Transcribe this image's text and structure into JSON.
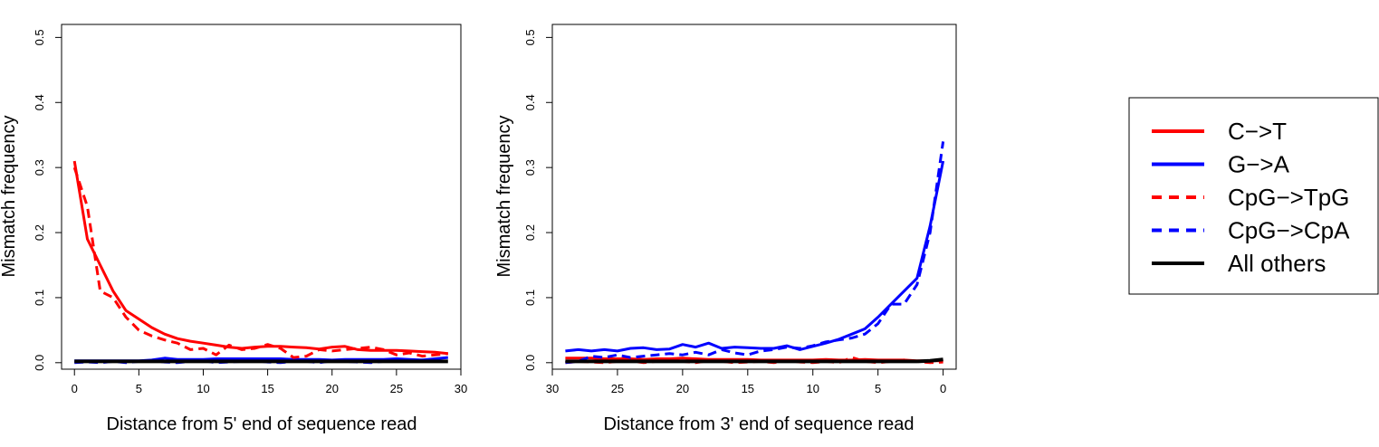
{
  "chart_data": [
    {
      "type": "line",
      "xlabel": "Distance from 5' end of sequence read",
      "ylabel": "Mismatch frequency",
      "xlim": [
        -1,
        30
      ],
      "ylim": [
        -0.01,
        0.52
      ],
      "xticks": [
        0,
        5,
        10,
        15,
        20,
        25,
        30
      ],
      "yticks": [
        0.0,
        0.1,
        0.2,
        0.3,
        0.4,
        0.5
      ],
      "x_reversed": false,
      "series": [
        {
          "name": "C->T",
          "color": "#ff0000",
          "dash": false,
          "x": [
            0,
            1,
            2,
            3,
            4,
            5,
            6,
            7,
            8,
            9,
            10,
            11,
            12,
            13,
            14,
            15,
            16,
            17,
            18,
            19,
            20,
            21,
            22,
            23,
            24,
            25,
            26,
            27,
            28,
            29
          ],
          "y": [
            0.31,
            0.19,
            0.15,
            0.11,
            0.08,
            0.067,
            0.054,
            0.044,
            0.037,
            0.033,
            0.03,
            0.027,
            0.024,
            0.022,
            0.024,
            0.025,
            0.025,
            0.024,
            0.023,
            0.021,
            0.024,
            0.025,
            0.02,
            0.019,
            0.019,
            0.019,
            0.018,
            0.017,
            0.016,
            0.014
          ]
        },
        {
          "name": "G->A",
          "color": "#0000ff",
          "dash": false,
          "x": [
            0,
            1,
            2,
            3,
            4,
            5,
            6,
            7,
            8,
            9,
            10,
            11,
            12,
            13,
            14,
            15,
            16,
            17,
            18,
            19,
            20,
            21,
            22,
            23,
            24,
            25,
            26,
            27,
            28,
            29
          ],
          "y": [
            0.003,
            0.003,
            0.003,
            0.003,
            0.003,
            0.003,
            0.004,
            0.007,
            0.005,
            0.005,
            0.005,
            0.006,
            0.006,
            0.006,
            0.006,
            0.006,
            0.006,
            0.005,
            0.005,
            0.005,
            0.004,
            0.005,
            0.005,
            0.005,
            0.005,
            0.006,
            0.005,
            0.004,
            0.006,
            0.008
          ]
        },
        {
          "name": "CpG->TpG",
          "color": "#ff0000",
          "dash": true,
          "x": [
            0,
            1,
            2,
            3,
            4,
            5,
            6,
            7,
            8,
            9,
            10,
            11,
            12,
            13,
            14,
            15,
            16,
            17,
            18,
            19,
            20,
            21,
            22,
            23,
            24,
            25,
            26,
            27,
            28,
            29
          ],
          "y": [
            0.3,
            0.24,
            0.11,
            0.1,
            0.07,
            0.05,
            0.041,
            0.035,
            0.03,
            0.02,
            0.022,
            0.012,
            0.027,
            0.02,
            0.022,
            0.028,
            0.022,
            0.008,
            0.01,
            0.02,
            0.018,
            0.02,
            0.022,
            0.024,
            0.02,
            0.012,
            0.015,
            0.01,
            0.012,
            0.014
          ]
        },
        {
          "name": "CpG->CpA",
          "color": "#0000ff",
          "dash": true,
          "x": [
            0,
            1,
            2,
            3,
            4,
            5,
            6,
            7,
            8,
            9,
            10,
            11,
            12,
            13,
            14,
            15,
            16,
            17,
            18,
            19,
            20,
            21,
            22,
            23,
            24,
            25,
            26,
            27,
            28,
            29
          ],
          "y": [
            0.0,
            0.001,
            0.0,
            0.002,
            0.0,
            0.002,
            0.003,
            0.001,
            0.0,
            0.002,
            0.003,
            0.0,
            0.001,
            0.002,
            0.003,
            0.001,
            0.0,
            0.002,
            0.002,
            0.0,
            0.003,
            0.002,
            0.001,
            0.0,
            0.002,
            0.003,
            0.002,
            0.004,
            0.003,
            0.002
          ]
        },
        {
          "name": "All others",
          "color": "#000000",
          "dash": false,
          "x": [
            0,
            1,
            2,
            3,
            4,
            5,
            6,
            7,
            8,
            9,
            10,
            11,
            12,
            13,
            14,
            15,
            16,
            17,
            18,
            19,
            20,
            21,
            22,
            23,
            24,
            25,
            26,
            27,
            28,
            29
          ],
          "y": [
            0.002,
            0.002,
            0.002,
            0.002,
            0.002,
            0.002,
            0.002,
            0.002,
            0.002,
            0.002,
            0.002,
            0.002,
            0.002,
            0.002,
            0.002,
            0.002,
            0.002,
            0.002,
            0.002,
            0.002,
            0.002,
            0.002,
            0.002,
            0.002,
            0.002,
            0.002,
            0.002,
            0.002,
            0.002,
            0.002
          ]
        }
      ]
    },
    {
      "type": "line",
      "xlabel": "Distance from 3' end of sequence read",
      "ylabel": "Mismatch frequency",
      "xlim": [
        -1,
        30
      ],
      "ylim": [
        -0.01,
        0.52
      ],
      "xticks": [
        30,
        25,
        20,
        15,
        10,
        5,
        0
      ],
      "yticks": [
        0.0,
        0.1,
        0.2,
        0.3,
        0.4,
        0.5
      ],
      "x_reversed": true,
      "series": [
        {
          "name": "C->T",
          "color": "#ff0000",
          "dash": false,
          "x": [
            29,
            28,
            27,
            26,
            25,
            24,
            23,
            22,
            21,
            20,
            19,
            18,
            17,
            16,
            15,
            14,
            13,
            12,
            11,
            10,
            9,
            8,
            7,
            6,
            5,
            4,
            3,
            2,
            1,
            0
          ],
          "y": [
            0.007,
            0.007,
            0.007,
            0.006,
            0.006,
            0.006,
            0.005,
            0.006,
            0.006,
            0.007,
            0.006,
            0.005,
            0.005,
            0.005,
            0.005,
            0.004,
            0.004,
            0.004,
            0.004,
            0.004,
            0.005,
            0.004,
            0.004,
            0.005,
            0.004,
            0.004,
            0.004,
            0.003,
            0.003,
            0.003
          ]
        },
        {
          "name": "G->A",
          "color": "#0000ff",
          "dash": false,
          "x": [
            29,
            28,
            27,
            26,
            25,
            24,
            23,
            22,
            21,
            20,
            19,
            18,
            17,
            16,
            15,
            14,
            13,
            12,
            11,
            10,
            9,
            8,
            7,
            6,
            5,
            4,
            3,
            2,
            1,
            0
          ],
          "y": [
            0.018,
            0.02,
            0.018,
            0.02,
            0.018,
            0.022,
            0.023,
            0.02,
            0.021,
            0.028,
            0.024,
            0.03,
            0.022,
            0.024,
            0.023,
            0.022,
            0.022,
            0.026,
            0.02,
            0.025,
            0.03,
            0.036,
            0.044,
            0.052,
            0.07,
            0.09,
            0.11,
            0.13,
            0.21,
            0.31
          ]
        },
        {
          "name": "CpG->TpG",
          "color": "#ff0000",
          "dash": true,
          "x": [
            29,
            28,
            27,
            26,
            25,
            24,
            23,
            22,
            21,
            20,
            19,
            18,
            17,
            16,
            15,
            14,
            13,
            12,
            11,
            10,
            9,
            8,
            7,
            6,
            5,
            4,
            3,
            2,
            1,
            0
          ],
          "y": [
            0.0,
            0.002,
            0.001,
            0.0,
            0.002,
            0.003,
            0.0,
            0.002,
            0.004,
            0.002,
            0.0,
            0.003,
            0.002,
            0.0,
            0.001,
            0.002,
            0.0,
            0.003,
            0.001,
            0.0,
            0.002,
            0.0,
            0.008,
            0.002,
            0.0,
            0.002,
            0.004,
            0.002,
            0.0,
            0.001
          ]
        },
        {
          "name": "CpG->CpA",
          "color": "#0000ff",
          "dash": true,
          "x": [
            29,
            28,
            27,
            26,
            25,
            24,
            23,
            22,
            21,
            20,
            19,
            18,
            17,
            16,
            15,
            14,
            13,
            12,
            11,
            10,
            9,
            8,
            7,
            6,
            5,
            4,
            3,
            2,
            1,
            0
          ],
          "y": [
            0.0,
            0.002,
            0.01,
            0.008,
            0.012,
            0.008,
            0.01,
            0.012,
            0.014,
            0.012,
            0.016,
            0.012,
            0.02,
            0.015,
            0.012,
            0.018,
            0.02,
            0.024,
            0.022,
            0.026,
            0.032,
            0.035,
            0.038,
            0.044,
            0.06,
            0.09,
            0.09,
            0.12,
            0.2,
            0.34
          ]
        },
        {
          "name": "All others",
          "color": "#000000",
          "dash": false,
          "x": [
            29,
            28,
            27,
            26,
            25,
            24,
            23,
            22,
            21,
            20,
            19,
            18,
            17,
            16,
            15,
            14,
            13,
            12,
            11,
            10,
            9,
            8,
            7,
            6,
            5,
            4,
            3,
            2,
            1,
            0
          ],
          "y": [
            0.002,
            0.002,
            0.002,
            0.002,
            0.002,
            0.002,
            0.002,
            0.002,
            0.002,
            0.002,
            0.002,
            0.002,
            0.002,
            0.002,
            0.002,
            0.002,
            0.002,
            0.002,
            0.002,
            0.002,
            0.002,
            0.002,
            0.002,
            0.002,
            0.002,
            0.002,
            0.002,
            0.002,
            0.003,
            0.005
          ]
        }
      ]
    }
  ],
  "legend": {
    "placement": "right",
    "items": [
      {
        "label": "C−>T",
        "color": "#ff0000",
        "dash": false
      },
      {
        "label": "G−>A",
        "color": "#0000ff",
        "dash": false
      },
      {
        "label": "CpG−>TpG",
        "color": "#ff0000",
        "dash": true
      },
      {
        "label": "CpG−>CpA",
        "color": "#0000ff",
        "dash": true
      },
      {
        "label": "All others",
        "color": "#000000",
        "dash": false
      }
    ]
  }
}
